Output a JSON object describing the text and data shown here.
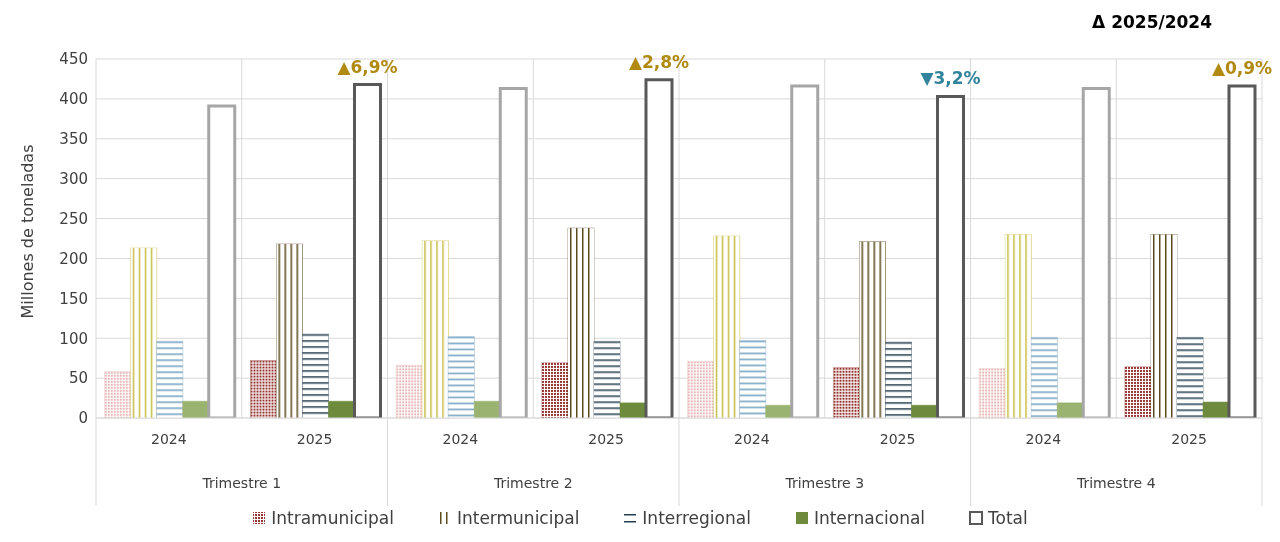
{
  "chart_data": {
    "type": "bar",
    "subtitle": "Δ 2025/2024",
    "ylabel": "Millones de toneladas",
    "categories": [
      "2024",
      "2025",
      "2024",
      "2025",
      "2024",
      "2025",
      "2024",
      "2025"
    ],
    "annotations": [
      "Trimestre 1",
      "Trimestre 2",
      "Trimestre 3",
      "Trimestre 4",
      "▲6,9%",
      "▲2,8%",
      "▼3,2%",
      "▲0,9%"
    ],
    "series": [
      {
        "name": "Intramunicipal",
        "color": "#963634",
        "colors": [
          "#e6b8b7",
          "#963634",
          "#e6b8b7",
          "#963634",
          "#e6b8b7",
          "#963634",
          "#e6b8b7",
          "#963634"
        ],
        "values": [
          58,
          72,
          66,
          69,
          71,
          63,
          62,
          64
        ]
      },
      {
        "name": "Intermunicipal",
        "color": "#5c4a1e",
        "colors": [
          "#c9bd45",
          "#5c4a1e",
          "#c9bd45",
          "#5c4a1e",
          "#c9bd45",
          "#5c4a1e",
          "#c9bd45",
          "#5c4a1e"
        ],
        "values": [
          213,
          218,
          222,
          238,
          228,
          221,
          230,
          230
        ]
      },
      {
        "name": "Interregional",
        "color": "#243f50",
        "colors": [
          "#6f9fbf",
          "#243f50",
          "#6f9fbf",
          "#243f50",
          "#6f9fbf",
          "#243f50",
          "#6f9fbf",
          "#243f50"
        ],
        "values": [
          96,
          105,
          102,
          96,
          97,
          95,
          101,
          101
        ]
      },
      {
        "name": "Internacional",
        "color": "#6e8b3d",
        "colors": [
          "#9bb370",
          "#6e8b3d",
          "#9bb370",
          "#6e8b3d",
          "#9bb370",
          "#6e8b3d",
          "#9bb370",
          "#6e8b3d"
        ],
        "values": [
          21,
          21,
          21,
          19,
          16,
          16,
          19,
          20
        ]
      },
      {
        "name": "Total",
        "color": "#595959",
        "colors": [
          "#a6a6a6",
          "#595959",
          "#a6a6a6",
          "#595959",
          "#a6a6a6",
          "#595959",
          "#a6a6a6",
          "#595959"
        ],
        "values": [
          391,
          418,
          413,
          424,
          416,
          403,
          413,
          416
        ]
      }
    ],
    "ylim": [
      0,
      450
    ],
    "yticks": [
      0,
      50,
      100,
      150,
      200,
      250,
      300,
      350,
      400,
      450
    ],
    "grid": true,
    "legend": "bottom"
  }
}
